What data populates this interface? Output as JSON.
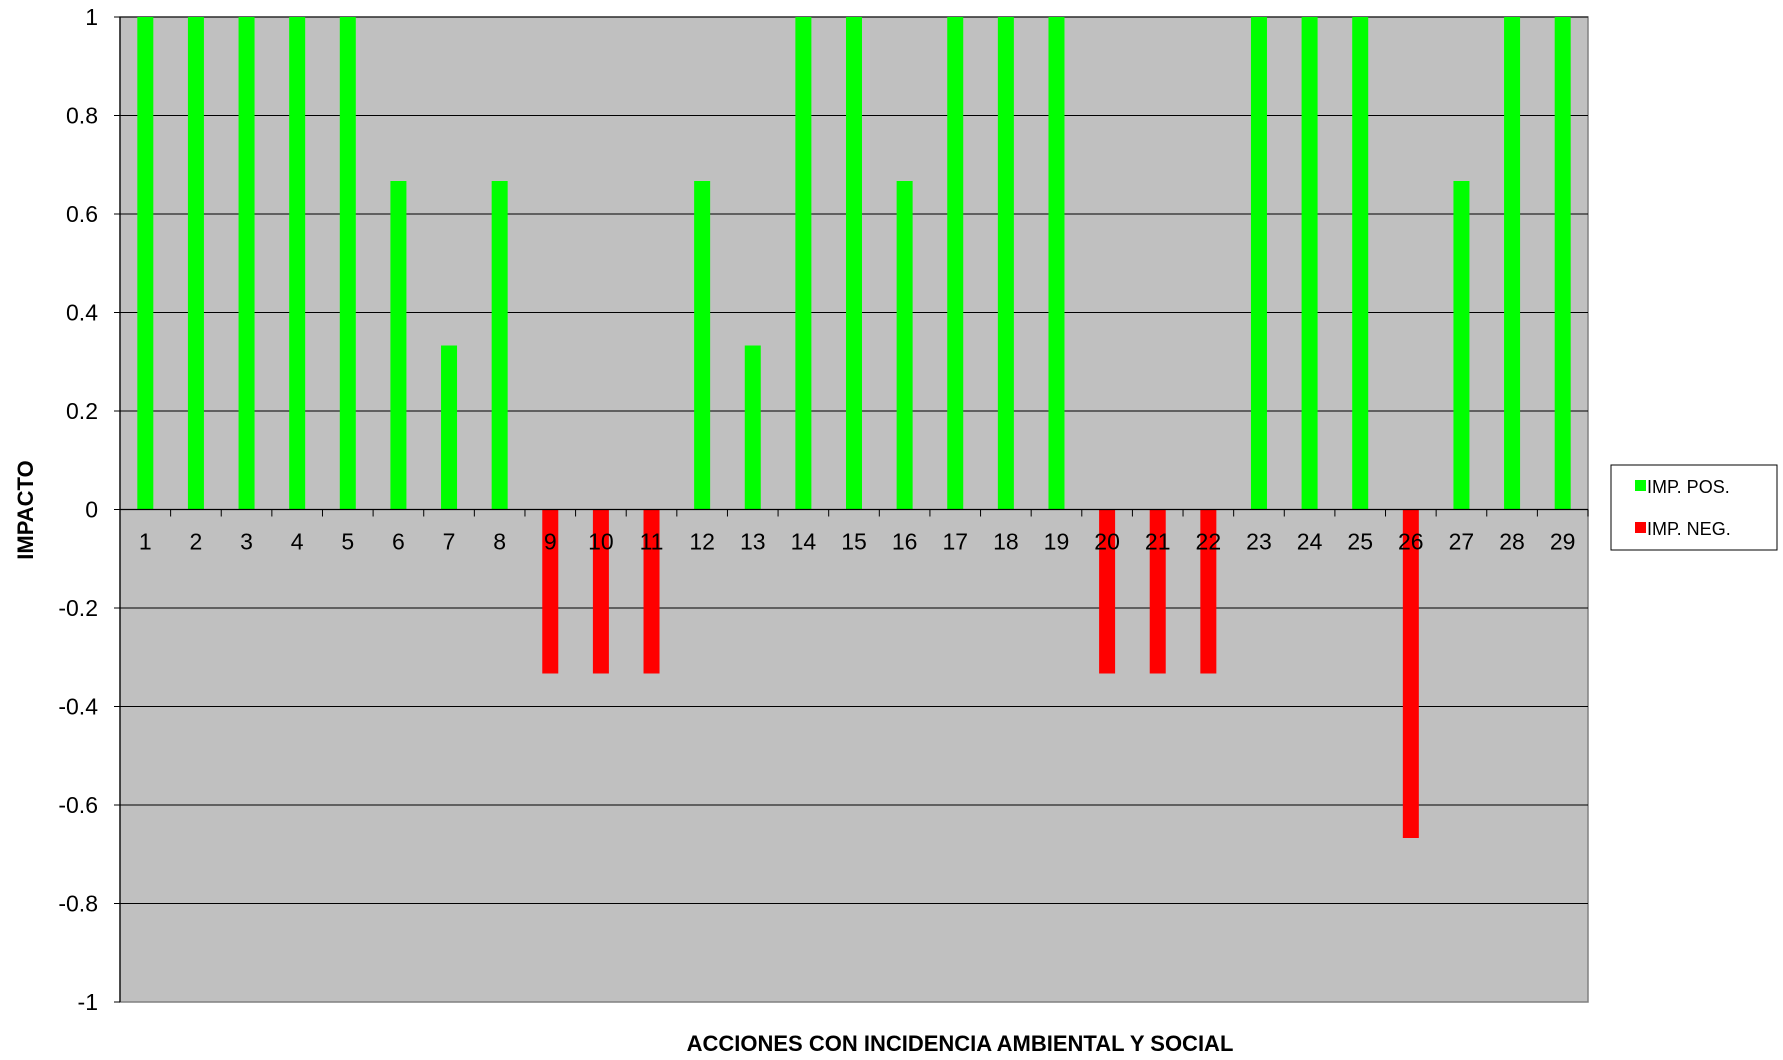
{
  "chart_data": {
    "type": "bar",
    "title": "",
    "xlabel": "ACCIONES CON INCIDENCIA AMBIENTAL Y SOCIAL",
    "ylabel": "IMPACTO",
    "ylim": [
      -1,
      1
    ],
    "yticks": [
      "1",
      "0.8",
      "0.6",
      "0.4",
      "0.2",
      "0",
      "-0.2",
      "-0.4",
      "-0.6",
      "-0.8",
      "-1"
    ],
    "ytick_values": [
      1,
      0.8,
      0.6,
      0.4,
      0.2,
      0,
      -0.2,
      -0.4,
      -0.6,
      -0.8,
      -1
    ],
    "categories": [
      "1",
      "2",
      "3",
      "4",
      "5",
      "6",
      "7",
      "8",
      "9",
      "10",
      "11",
      "12",
      "13",
      "14",
      "15",
      "16",
      "17",
      "18",
      "19",
      "20",
      "21",
      "22",
      "23",
      "24",
      "25",
      "26",
      "27",
      "28",
      "29"
    ],
    "series": [
      {
        "name": "IMP. POS.",
        "color": "#00ff00",
        "values": [
          1,
          1,
          1,
          1,
          1,
          0.667,
          0.333,
          0.667,
          0,
          0,
          0,
          0.667,
          0.333,
          1,
          1,
          0.667,
          1,
          1,
          1,
          0,
          0,
          0,
          1,
          1,
          1,
          0,
          0.667,
          1,
          1
        ]
      },
      {
        "name": "IMP. NEG.",
        "color": "#ff0000",
        "values": [
          0,
          0,
          0,
          0,
          0,
          0,
          0,
          0,
          -0.333,
          -0.333,
          -0.333,
          0,
          0,
          0,
          0,
          0,
          0,
          0,
          0,
          -0.333,
          -0.333,
          -0.333,
          0,
          0,
          0,
          -0.667,
          0,
          0,
          0
        ]
      }
    ],
    "grid": true,
    "plot_background": "#c0c0c0",
    "legend_position": "right"
  }
}
